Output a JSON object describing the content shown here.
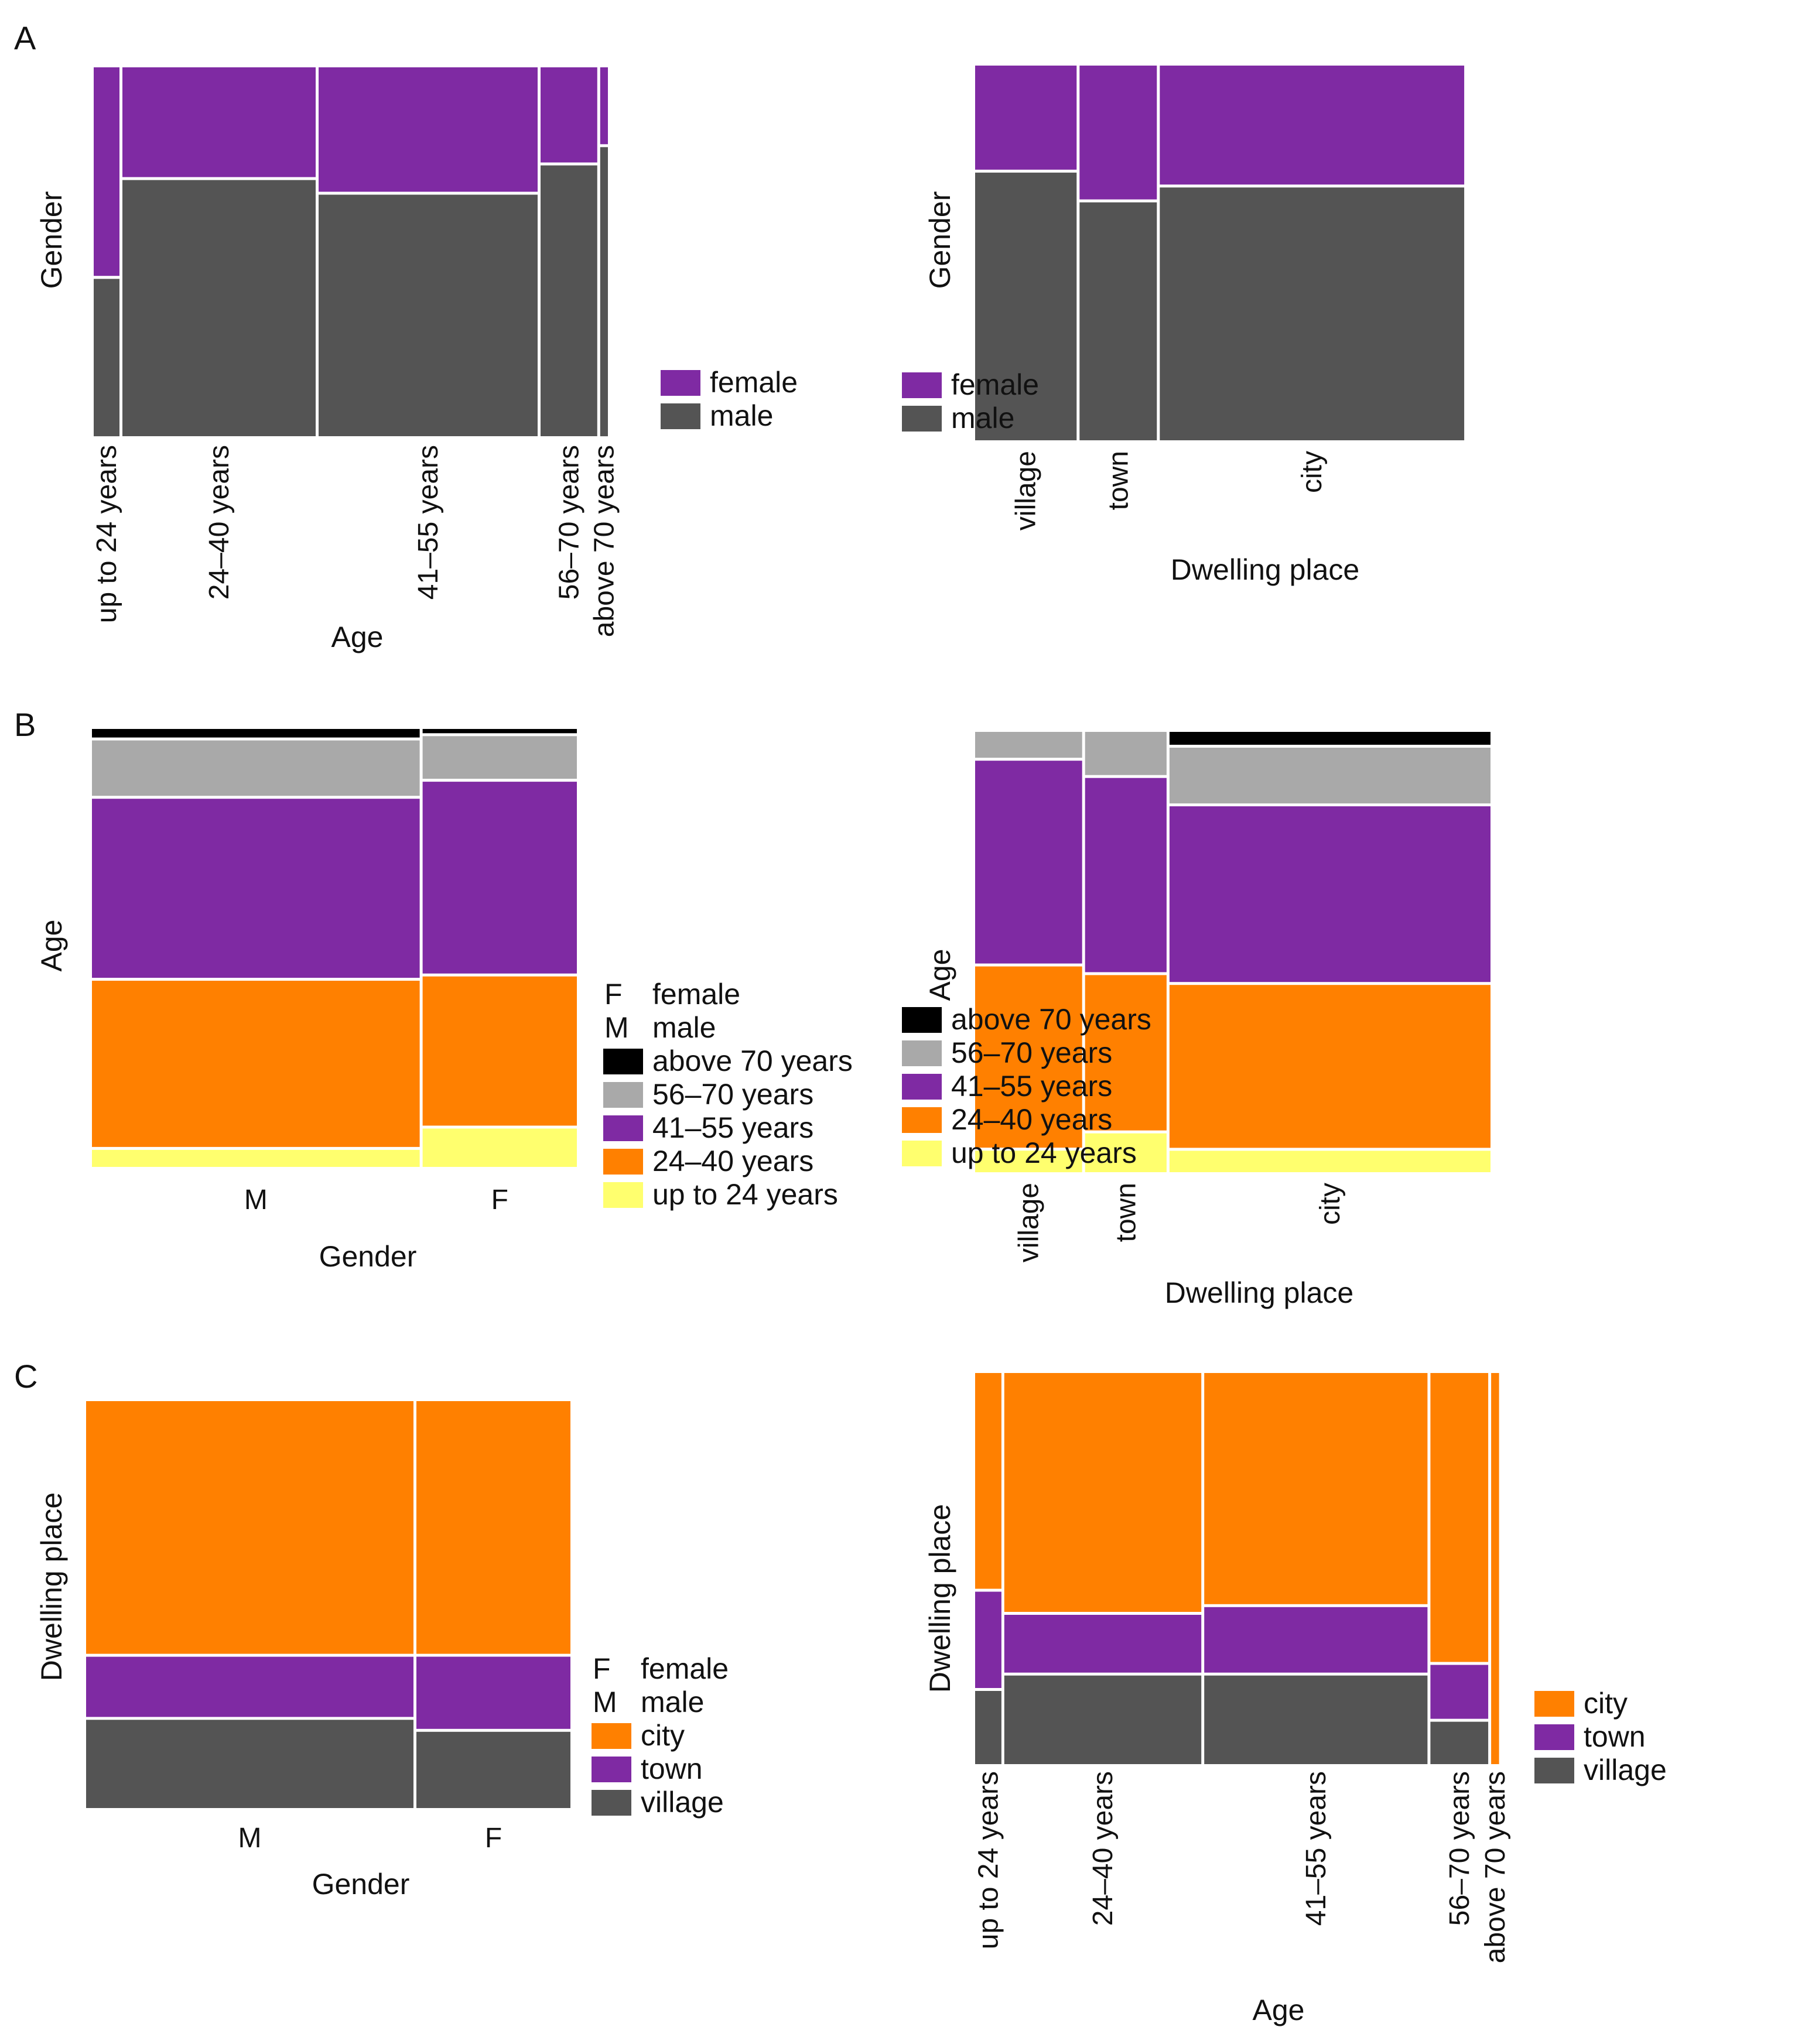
{
  "panels": [
    {
      "id": "A",
      "label": "A"
    },
    {
      "id": "B",
      "label": "B"
    },
    {
      "id": "C",
      "label": "C"
    }
  ],
  "colors": {
    "female": "#7F2AA3",
    "male": "#545454",
    "above_70": "#000000",
    "age_56_70": "#A9A9A9",
    "age_41_55": "#7F2AA3",
    "age_24_40": "#FF8000",
    "up_to_24": "#FFFF6E",
    "city": "#FF8000",
    "town": "#7F2AA3",
    "village": "#545454",
    "separator": "#ffffff"
  },
  "chart_data": [
    {
      "type": "mosaic",
      "panel": "A",
      "title": "",
      "xlabel": "Age",
      "ylabel": "Gender",
      "categories": [
        "up to 24 years",
        "24–40 years",
        "41–55 years",
        "56–70 years",
        "above 70 years"
      ],
      "column_shares": [
        0.05,
        0.375,
        0.425,
        0.11,
        0.015
      ],
      "series": [
        {
          "name": "male",
          "color_key": "male",
          "values": [
            0.43,
            0.7,
            0.66,
            0.74,
            0.79
          ]
        },
        {
          "name": "female",
          "color_key": "female",
          "values": [
            0.57,
            0.3,
            0.34,
            0.26,
            0.21
          ]
        }
      ],
      "legend": [
        {
          "label": "female",
          "color_key": "female"
        },
        {
          "label": "male",
          "color_key": "male"
        }
      ],
      "legend_position": "right"
    },
    {
      "type": "mosaic",
      "panel": "A",
      "title": "",
      "xlabel": "Dwelling place",
      "ylabel": "Gender",
      "categories": [
        "village",
        "town",
        "city"
      ],
      "column_shares": [
        0.21,
        0.16,
        0.63
      ],
      "series": [
        {
          "name": "male",
          "color_key": "male",
          "values": [
            0.72,
            0.64,
            0.68
          ]
        },
        {
          "name": "female",
          "color_key": "female",
          "values": [
            0.28,
            0.36,
            0.32
          ]
        }
      ],
      "legend": [
        {
          "label": "female",
          "color_key": "female"
        },
        {
          "label": "male",
          "color_key": "male"
        }
      ],
      "legend_position": "right"
    },
    {
      "type": "mosaic",
      "panel": "B",
      "title": "",
      "xlabel": "Gender",
      "ylabel": "Age",
      "categories": [
        "M",
        "F"
      ],
      "column_shares": [
        0.68,
        0.32
      ],
      "series": [
        {
          "name": "up to 24 years",
          "color_key": "up_to_24",
          "values": [
            0.04,
            0.09
          ]
        },
        {
          "name": "24–40 years",
          "color_key": "age_24_40",
          "values": [
            0.39,
            0.35
          ]
        },
        {
          "name": "41–55 years",
          "color_key": "age_41_55",
          "values": [
            0.42,
            0.45
          ]
        },
        {
          "name": "56–70 years",
          "color_key": "age_56_70",
          "values": [
            0.13,
            0.1
          ]
        },
        {
          "name": "above 70 years",
          "color_key": "above_70",
          "values": [
            0.02,
            0.01
          ]
        }
      ],
      "legend": [
        {
          "label": "female",
          "key_letter": "F"
        },
        {
          "label": "male",
          "key_letter": "M"
        },
        {
          "label": "above 70 years",
          "color_key": "above_70"
        },
        {
          "label": "56–70 years",
          "color_key": "age_56_70"
        },
        {
          "label": "41–55 years",
          "color_key": "age_41_55"
        },
        {
          "label": "24–40 years",
          "color_key": "age_24_40"
        },
        {
          "label": "up to 24 years",
          "color_key": "up_to_24"
        }
      ],
      "legend_position": "right"
    },
    {
      "type": "mosaic",
      "panel": "B",
      "title": "",
      "xlabel": "Dwelling place",
      "ylabel": "Age",
      "categories": [
        "village",
        "town",
        "city"
      ],
      "column_shares": [
        0.21,
        0.16,
        0.63
      ],
      "series": [
        {
          "name": "up to 24 years",
          "color_key": "up_to_24",
          "values": [
            0.05,
            0.09,
            0.05
          ]
        },
        {
          "name": "24–40 years",
          "color_key": "age_24_40",
          "values": [
            0.42,
            0.36,
            0.38
          ]
        },
        {
          "name": "41–55 years",
          "color_key": "age_41_55",
          "values": [
            0.47,
            0.45,
            0.41
          ]
        },
        {
          "name": "56–70 years",
          "color_key": "age_56_70",
          "values": [
            0.06,
            0.1,
            0.13
          ]
        },
        {
          "name": "above 70 years",
          "color_key": "above_70",
          "values": [
            0.0,
            0.0,
            0.03
          ]
        }
      ],
      "legend": [
        {
          "label": "above 70 years",
          "color_key": "above_70"
        },
        {
          "label": "56–70 years",
          "color_key": "age_56_70"
        },
        {
          "label": "41–55 years",
          "color_key": "age_41_55"
        },
        {
          "label": "24–40 years",
          "color_key": "age_24_40"
        },
        {
          "label": "up to 24 years",
          "color_key": "up_to_24"
        }
      ],
      "legend_position": "right"
    },
    {
      "type": "mosaic",
      "panel": "C",
      "title": "",
      "xlabel": "Gender",
      "ylabel": "Dwelling place",
      "categories": [
        "M",
        "F"
      ],
      "column_shares": [
        0.68,
        0.32
      ],
      "series": [
        {
          "name": "village",
          "color_key": "village",
          "values": [
            0.22,
            0.19
          ]
        },
        {
          "name": "town",
          "color_key": "town",
          "values": [
            0.15,
            0.18
          ]
        },
        {
          "name": "city",
          "color_key": "city",
          "values": [
            0.63,
            0.63
          ]
        }
      ],
      "legend": [
        {
          "label": "female",
          "key_letter": "F"
        },
        {
          "label": "male",
          "key_letter": "M"
        },
        {
          "label": "city",
          "color_key": "city"
        },
        {
          "label": "town",
          "color_key": "town"
        },
        {
          "label": "village",
          "color_key": "village"
        }
      ],
      "legend_position": "right"
    },
    {
      "type": "mosaic",
      "panel": "C",
      "title": "",
      "xlabel": "Age",
      "ylabel": "Dwelling place",
      "categories": [
        "up to 24 years",
        "24–40 years",
        "41–55 years",
        "56–70 years",
        "above 70 years"
      ],
      "column_shares": [
        0.05,
        0.375,
        0.425,
        0.11,
        0.015
      ],
      "series": [
        {
          "name": "village",
          "color_key": "village",
          "values": [
            0.19,
            0.23,
            0.23,
            0.11,
            0.0
          ]
        },
        {
          "name": "town",
          "color_key": "town",
          "values": [
            0.25,
            0.15,
            0.17,
            0.14,
            0.0
          ]
        },
        {
          "name": "city",
          "color_key": "city",
          "values": [
            0.56,
            0.62,
            0.6,
            0.75,
            1.0
          ]
        }
      ],
      "legend": [
        {
          "label": "city",
          "color_key": "city"
        },
        {
          "label": "town",
          "color_key": "town"
        },
        {
          "label": "village",
          "color_key": "village"
        }
      ],
      "legend_position": "right"
    }
  ]
}
